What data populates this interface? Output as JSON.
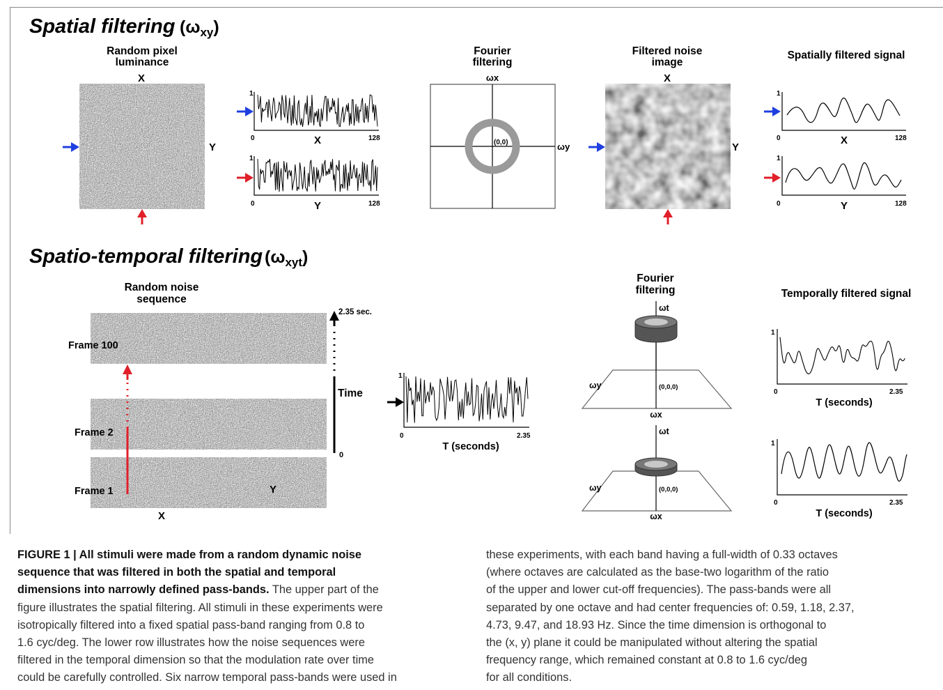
{
  "top": {
    "section_title": "Spatial filtering",
    "section_symbol": "(ω",
    "section_symbol_sub": "xy",
    "section_symbol_end": ")",
    "panel1_title_l1": "Random pixel",
    "panel1_title_l2": "luminance",
    "panel1_x": "X",
    "panel1_y": "Y",
    "trace1_ymax": "1",
    "trace1_x0": "0",
    "trace1_xmax": "128",
    "trace1_axis": "X",
    "trace2_ymax": "1",
    "trace2_x0": "0",
    "trace2_xmax": "128",
    "trace2_axis": "Y",
    "fourier_title_l1": "Fourier",
    "fourier_title_l2": "filtering",
    "fourier_wx": "ωx",
    "fourier_wy": "ωy",
    "fourier_origin": "(0,0)",
    "filtered_title_l1": "Filtered noise",
    "filtered_title_l2": "image",
    "filtered_x": "X",
    "filtered_y": "Y",
    "signal_title": "Spatially filtered signal",
    "strace1_ymax": "1",
    "strace1_x0": "0",
    "strace1_xmax": "128",
    "strace1_axis": "X",
    "strace2_ymax": "1",
    "strace2_x0": "0",
    "strace2_xmax": "128",
    "strace2_axis": "Y"
  },
  "bottom": {
    "section_title": "Spatio-temporal filtering",
    "section_symbol": "(ω",
    "section_symbol_sub": "xyt",
    "section_symbol_end": ")",
    "seq_title_l1": "Random noise",
    "seq_title_l2": "sequence",
    "frame100": "Frame 100",
    "frame2": "Frame 2",
    "frame1": "Frame 1",
    "axis_x": "X",
    "axis_y": "Y",
    "time_top": "2.35 sec.",
    "time_label": "Time",
    "time_zero": "0",
    "ttrace_ymax": "1",
    "ttrace_x0": "0",
    "ttrace_xmax": "2.35",
    "ttrace_axis": "T (seconds)",
    "fourier_title_l1": "Fourier",
    "fourier_title_l2": "filtering",
    "f1_wt": "ωt",
    "f1_wy": "ωy",
    "f1_wx": "ωx",
    "f1_origin": "(0,0,0)",
    "f2_wt": "ωt",
    "f2_wy": "ωy",
    "f2_wx": "ωx",
    "f2_origin": "(0,0,0)",
    "signal_title": "Temporally filtered signal",
    "s1_ymax": "1",
    "s1_x0": "0",
    "s1_xmax": "2.35",
    "s1_axis": "T (seconds)",
    "s2_ymax": "1",
    "s2_x0": "0",
    "s2_xmax": "2.35",
    "s2_axis": "T (seconds)"
  },
  "colors": {
    "blue_arrow": "#1f3fe0",
    "red_arrow": "#e0202a",
    "ring": "#9a9a9a"
  },
  "caption": {
    "figure_label": "FIGURE 1 | All stimuli were made from a random dynamic noise",
    "bold_l2": "sequence that was filtered in both the spatial and temporal",
    "bold_l3": "dimensions into narrowly defined pass-bands.",
    "l3_rest": " The upper part of the",
    "l4": "figure illustrates the spatial filtering. All stimuli in these experiments were",
    "l5": "isotropically filtered into a fixed spatial pass-band ranging from 0.8 to",
    "l6": "1.6 cyc/deg. The lower row illustrates how the noise sequences were",
    "l7": "filtered in the temporal dimension so that the modulation rate over time",
    "l8": "could be carefully controlled. Six narrow temporal pass-bands were used in",
    "r1": "these experiments, with each band having a full-width of 0.33 octaves",
    "r2": "(where octaves are calculated as the base-two logarithm of the ratio",
    "r3": "of the upper and lower cut-off frequencies). The pass-bands were all",
    "r4": "separated by one octave and had center frequencies of: 0.59, 1.18, 2.37,",
    "r5": "4.73, 9.47, and 18.93 Hz. Since the time dimension is orthogonal to",
    "r6": "the (x, y) plane it could be manipulated without altering the spatial",
    "r7": "frequency range, which remained constant at 0.8 to 1.6 cyc/deg",
    "r8": "for all conditions."
  }
}
